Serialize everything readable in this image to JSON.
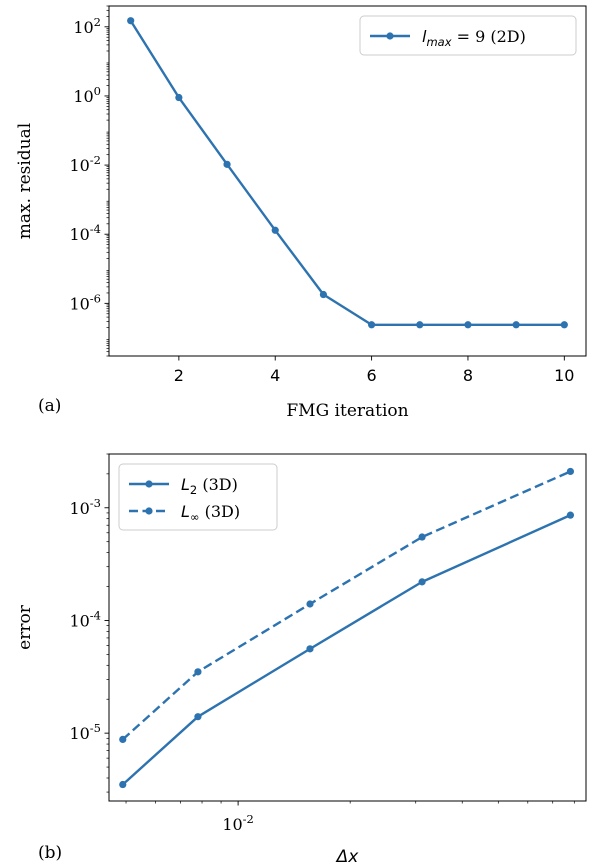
{
  "chart_data": [
    {
      "type": "line",
      "panel_label": "(a)",
      "xlabel": "FMG iteration",
      "ylabel": "max. residual",
      "yscale": "log",
      "xlim": [
        0.55,
        10.45
      ],
      "ylim": [
        3e-08,
        400
      ],
      "xticks": [
        2,
        4,
        6,
        8,
        10
      ],
      "yticks": [
        {
          "value": 100,
          "base": "10",
          "exp": "2"
        },
        {
          "value": 1,
          "base": "10",
          "exp": "0"
        },
        {
          "value": 0.01,
          "base": "10",
          "exp": "-2"
        },
        {
          "value": 0.0001,
          "base": "10",
          "exp": "-4"
        },
        {
          "value": 1e-06,
          "base": "10",
          "exp": "-6"
        }
      ],
      "legend_position": "top-right",
      "series": [
        {
          "name": "l_max = 9 (2D)",
          "legend": {
            "sym": "l",
            "sub": "max",
            "rest": " = 9 (2D)"
          },
          "color": "#2d73b0",
          "style": "solid",
          "x": [
            1,
            2,
            3,
            4,
            5,
            6,
            7,
            8,
            9,
            10
          ],
          "y": [
            150,
            0.9,
            0.0105,
            0.00013,
            1.8e-06,
            2.4e-07,
            2.4e-07,
            2.4e-07,
            2.4e-07,
            2.4e-07
          ]
        }
      ]
    },
    {
      "type": "line",
      "panel_label": "(b)",
      "xlabel": "Δx",
      "ylabel": "error",
      "xscale": "log",
      "yscale": "log",
      "xlim": [
        0.0045,
        0.086
      ],
      "ylim": [
        2.5e-06,
        0.003
      ],
      "xticks": [
        {
          "value": 0.01,
          "base": "10",
          "exp": "-2"
        }
      ],
      "yticks": [
        {
          "value": 0.001,
          "base": "10",
          "exp": "-3"
        },
        {
          "value": 0.0001,
          "base": "10",
          "exp": "-4"
        },
        {
          "value": 1e-05,
          "base": "10",
          "exp": "-5"
        }
      ],
      "legend_position": "top-left",
      "series": [
        {
          "name": "L_2 (3D)",
          "legend": {
            "sym": "L",
            "sub": "2",
            "rest": " (3D)"
          },
          "color": "#2d73b0",
          "style": "solid",
          "x": [
            0.0049,
            0.0078,
            0.0156,
            0.0312,
            0.0781
          ],
          "y": [
            3.5e-06,
            1.4e-05,
            5.6e-05,
            0.00022,
            0.00086
          ]
        },
        {
          "name": "L_∞ (3D)",
          "legend": {
            "sym": "L",
            "sub": "∞",
            "rest": " (3D)"
          },
          "color": "#2d73b0",
          "style": "dashed",
          "x": [
            0.0049,
            0.0078,
            0.0156,
            0.0312,
            0.0781
          ],
          "y": [
            8.8e-06,
            3.5e-05,
            0.00014,
            0.00055,
            0.0021
          ]
        }
      ]
    }
  ]
}
